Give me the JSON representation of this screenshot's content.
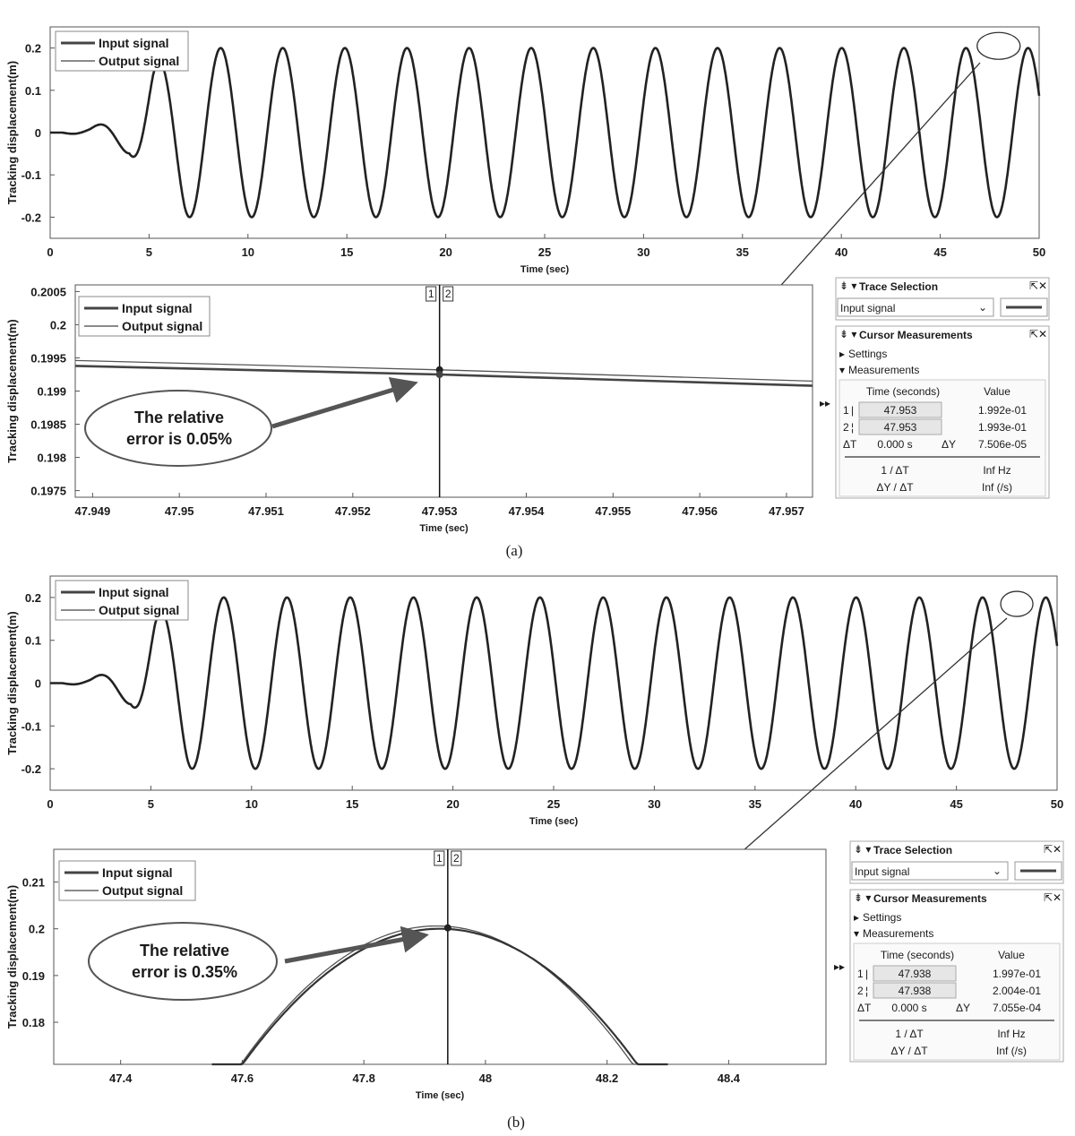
{
  "figure": {
    "labels": [
      "(a)",
      "(b)"
    ],
    "legend": [
      "Input signal",
      "Output signal"
    ]
  },
  "chart_data": [
    {
      "id": "a-top",
      "type": "line",
      "xlabel": "Time (sec)",
      "ylabel": "Tracking displacement(m)",
      "xlim": [
        0,
        50
      ],
      "ylim": [
        -0.25,
        0.25
      ],
      "xticks": [
        "0",
        "5",
        "10",
        "15",
        "20",
        "25",
        "30",
        "35",
        "40",
        "45",
        "50"
      ],
      "yticks": [
        "0.2",
        "0.1",
        "0",
        "-0.1",
        "-0.2"
      ],
      "series": [
        {
          "name": "Input signal",
          "values": "sinusoid amplitude 0.2 m, ~3.14 s period after ~5 s ramp-up"
        },
        {
          "name": "Output signal",
          "values": "tracks input signal"
        }
      ],
      "legend_position": "top-left"
    },
    {
      "id": "a-zoom",
      "type": "line",
      "xlabel": "Time (sec)",
      "ylabel": "Tracking displacement(m)",
      "xlim": [
        47.9488,
        47.9573
      ],
      "ylim": [
        0.1974,
        0.2006
      ],
      "xticks": [
        "47.949",
        "47.95",
        "47.951",
        "47.952",
        "47.953",
        "47.954",
        "47.955",
        "47.956",
        "47.957"
      ],
      "yticks": [
        "0.2005",
        "0.2",
        "0.1995",
        "0.199",
        "0.1985",
        "0.198",
        "0.1975"
      ],
      "series": [
        {
          "name": "Input signal",
          "x": [
            47.9488,
            47.953,
            47.9573
          ],
          "y": [
            0.19938,
            0.19925,
            0.19908
          ]
        },
        {
          "name": "Output signal",
          "x": [
            47.9488,
            47.953,
            47.9573
          ],
          "y": [
            0.19946,
            0.19932,
            0.19915
          ]
        }
      ],
      "cursor_x": 47.953,
      "callout": [
        "The relative",
        "error is 0.05%"
      ],
      "legend_position": "top-left"
    },
    {
      "id": "b-top",
      "type": "line",
      "xlabel": "Time (sec)",
      "ylabel": "Tracking displacement(m)",
      "xlim": [
        0,
        50
      ],
      "ylim": [
        -0.25,
        0.25
      ],
      "xticks": [
        "0",
        "5",
        "10",
        "15",
        "20",
        "25",
        "30",
        "35",
        "40",
        "45",
        "50"
      ],
      "yticks": [
        "0.2",
        "0.1",
        "0",
        "-0.1",
        "-0.2"
      ],
      "series": [
        {
          "name": "Input signal",
          "values": "sinusoid amplitude 0.2 m, ~3.14 s period after ~5 s ramp-up"
        },
        {
          "name": "Output signal",
          "values": "tracks input signal"
        }
      ],
      "legend_position": "top-left"
    },
    {
      "id": "b-zoom",
      "type": "line",
      "xlabel": "Time (sec)",
      "ylabel": "Tracking displacement(m)",
      "xlim": [
        47.29,
        48.56
      ],
      "ylim": [
        0.171,
        0.217
      ],
      "xticks": [
        "47.4",
        "47.6",
        "47.8",
        "48",
        "48.2",
        "48.4"
      ],
      "yticks": [
        "0.21",
        "0.2",
        "0.19",
        "0.18"
      ],
      "series": [
        {
          "name": "Input signal",
          "peak_x": 47.92,
          "peak_y": 0.2
        },
        {
          "name": "Output signal",
          "peak_x": 47.92,
          "peak_y": 0.2006
        }
      ],
      "cursor_x": 47.938,
      "callout": [
        "The relative",
        "error is 0.35%"
      ],
      "legend_position": "top-left"
    }
  ],
  "panels": [
    {
      "trace_title": "Trace Selection",
      "trace_value": "Input signal",
      "cursor_title": "Cursor Measurements",
      "settings": "Settings",
      "measurements": "Measurements",
      "col_time": "Time (seconds)",
      "col_value": "Value",
      "row1_label": "1",
      "row1_time": "47.953",
      "row1_value": "1.992e-01",
      "row2_label": "2",
      "row2_time": "47.953",
      "row2_value": "1.993e-01",
      "dt_label": "ΔT",
      "dt_value": "0.000 s",
      "dy_label": "ΔY",
      "dy_value": "7.506e-05",
      "inv_dt_label": "1 / ΔT",
      "inv_dt_value": "Inf Hz",
      "dydt_label": "ΔY / ΔT",
      "dydt_value": "Inf (/s)"
    },
    {
      "trace_title": "Trace Selection",
      "trace_value": "Input signal",
      "cursor_title": "Cursor Measurements",
      "settings": "Settings",
      "measurements": "Measurements",
      "col_time": "Time (seconds)",
      "col_value": "Value",
      "row1_label": "1",
      "row1_time": "47.938",
      "row1_value": "1.997e-01",
      "row2_label": "2",
      "row2_time": "47.938",
      "row2_value": "2.004e-01",
      "dt_label": "ΔT",
      "dt_value": "0.000 s",
      "dy_label": "ΔY",
      "dy_value": "7.055e-04",
      "inv_dt_label": "1 / ΔT",
      "inv_dt_value": "Inf Hz",
      "dydt_label": "ΔY / ΔT",
      "dydt_value": "Inf (/s)"
    }
  ]
}
